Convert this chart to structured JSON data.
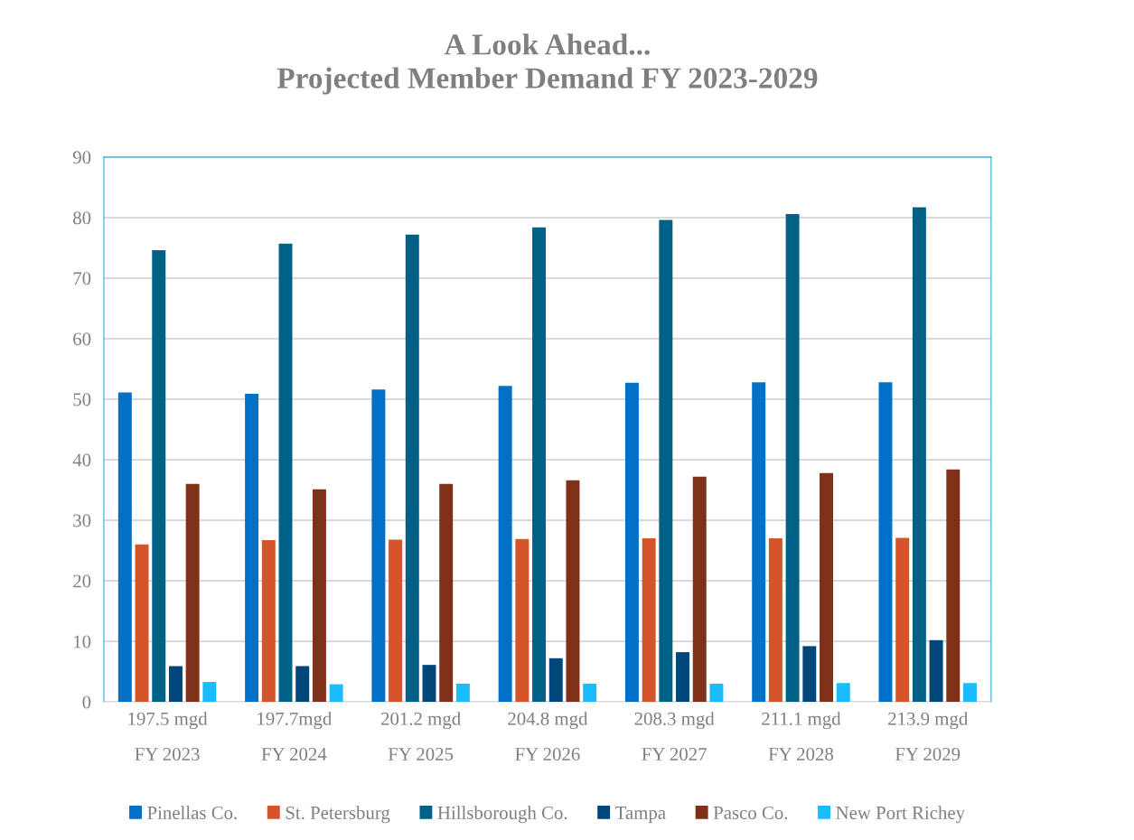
{
  "chart_data": {
    "type": "bar",
    "title": "A Look Ahead...\nProjected Member Demand FY 2023-2029",
    "categories": [
      "197.5 mgd\nFY 2023",
      "197.7mgd\nFY 2024",
      "201.2 mgd\nFY 2025",
      "204.8 mgd\nFY 2026",
      "208.3 mgd\nFY 2027",
      "211.1 mgd\nFY 2028",
      "213.9 mgd\nFY 2029"
    ],
    "series": [
      {
        "name": "Pinellas Co.",
        "color": "#0070c8",
        "values": [
          51.1,
          50.9,
          51.6,
          52.2,
          52.7,
          52.8,
          52.8
        ]
      },
      {
        "name": "St. Petersburg",
        "color": "#d5552b",
        "values": [
          26.0,
          26.7,
          26.8,
          26.9,
          27.0,
          27.0,
          27.1
        ]
      },
      {
        "name": "Hillsborough Co.",
        "color": "#006186",
        "values": [
          74.6,
          75.7,
          77.2,
          78.4,
          79.6,
          80.6,
          81.7
        ]
      },
      {
        "name": "Tampa",
        "color": "#00467a",
        "values": [
          5.9,
          5.9,
          6.1,
          7.2,
          8.2,
          9.2,
          10.2
        ]
      },
      {
        "name": "Pasco Co.",
        "color": "#7f3019",
        "values": [
          36.0,
          35.1,
          36.0,
          36.6,
          37.2,
          37.8,
          38.4
        ]
      },
      {
        "name": "New Port Richey",
        "color": "#1abcfe",
        "values": [
          3.3,
          2.9,
          3.0,
          3.0,
          3.0,
          3.1,
          3.1
        ]
      }
    ],
    "ylim": [
      0,
      90
    ],
    "yticks": [
      0,
      10,
      20,
      30,
      40,
      50,
      60,
      70,
      80,
      90
    ],
    "grid": "y",
    "legend": "bottom"
  }
}
